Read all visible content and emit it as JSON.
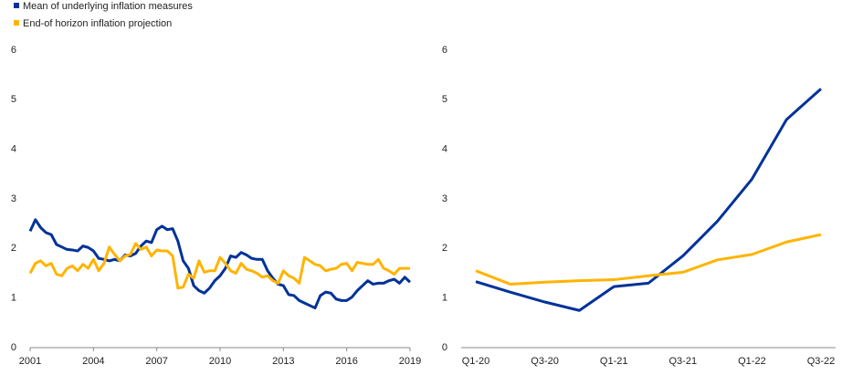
{
  "chart_data": [
    {
      "type": "line",
      "x": [
        2001,
        2001.25,
        2001.5,
        2001.75,
        2002,
        2002.25,
        2002.5,
        2002.75,
        2003,
        2003.25,
        2003.5,
        2003.75,
        2004,
        2004.25,
        2004.5,
        2004.75,
        2005,
        2005.25,
        2005.5,
        2005.75,
        2006,
        2006.25,
        2006.5,
        2006.75,
        2007,
        2007.25,
        2007.5,
        2007.75,
        2008,
        2008.25,
        2008.5,
        2008.75,
        2009,
        2009.25,
        2009.5,
        2009.75,
        2010,
        2010.25,
        2010.5,
        2010.75,
        2011,
        2011.25,
        2011.5,
        2011.75,
        2012,
        2012.25,
        2012.5,
        2012.75,
        2013,
        2013.25,
        2013.5,
        2013.75,
        2014,
        2014.25,
        2014.5,
        2014.75,
        2015,
        2015.25,
        2015.5,
        2015.75,
        2016,
        2016.25,
        2016.5,
        2016.75,
        2017,
        2017.25,
        2017.5,
        2017.75,
        2018,
        2018.25,
        2018.5,
        2018.75,
        2019
      ],
      "series": [
        {
          "name": "Mean of underlying inflation measures",
          "color": "#003299",
          "values": [
            2.35,
            2.58,
            2.42,
            2.32,
            2.28,
            2.08,
            2.03,
            1.98,
            1.97,
            1.95,
            2.05,
            2.02,
            1.95,
            1.8,
            1.78,
            1.75,
            1.78,
            1.75,
            1.87,
            1.85,
            1.9,
            2.05,
            2.15,
            2.12,
            2.38,
            2.45,
            2.38,
            2.4,
            2.15,
            1.75,
            1.6,
            1.25,
            1.15,
            1.1,
            1.2,
            1.35,
            1.45,
            1.6,
            1.85,
            1.82,
            1.92,
            1.87,
            1.8,
            1.78,
            1.78,
            1.55,
            1.4,
            1.28,
            1.25,
            1.07,
            1.05,
            0.95,
            0.9,
            0.85,
            0.8,
            1.05,
            1.12,
            1.1,
            0.98,
            0.95,
            0.95,
            1.02,
            1.15,
            1.25,
            1.35,
            1.28,
            1.3,
            1.3,
            1.35,
            1.38,
            1.3,
            1.42,
            1.32
          ]
        },
        {
          "name": "End-of horizon inflation projection",
          "color": "#ffb400",
          "values": [
            1.5,
            1.7,
            1.75,
            1.65,
            1.7,
            1.48,
            1.45,
            1.6,
            1.65,
            1.55,
            1.68,
            1.6,
            1.78,
            1.55,
            1.7,
            2.03,
            1.88,
            1.75,
            1.85,
            1.88,
            2.1,
            1.98,
            2.03,
            1.85,
            1.97,
            1.95,
            1.95,
            1.85,
            1.2,
            1.22,
            1.48,
            1.4,
            1.75,
            1.52,
            1.55,
            1.55,
            1.82,
            1.7,
            1.55,
            1.5,
            1.7,
            1.58,
            1.55,
            1.5,
            1.42,
            1.45,
            1.35,
            1.3,
            1.55,
            1.45,
            1.4,
            1.3,
            1.82,
            1.75,
            1.68,
            1.65,
            1.55,
            1.58,
            1.6,
            1.68,
            1.7,
            1.55,
            1.72,
            1.7,
            1.68,
            1.68,
            1.78,
            1.6,
            1.55,
            1.48,
            1.6,
            1.6,
            1.6
          ]
        }
      ],
      "xlim": [
        2001,
        2019
      ],
      "xticks": [
        2001,
        2004,
        2007,
        2010,
        2013,
        2016,
        2019
      ],
      "ylim": [
        0,
        6
      ],
      "yticks": [
        0,
        1,
        2,
        3,
        4,
        5,
        6
      ]
    },
    {
      "type": "line",
      "categories": [
        "Q1-20",
        null,
        "Q3-20",
        null,
        "Q1-21",
        null,
        "Q3-21",
        null,
        "Q1-22",
        null,
        "Q3-22"
      ],
      "series": [
        {
          "color": "#003299",
          "values": [
            1.33,
            1.12,
            0.92,
            0.75,
            1.23,
            1.3,
            1.85,
            2.55,
            3.4,
            4.6,
            5.22
          ]
        },
        {
          "color": "#ffb400",
          "values": [
            1.55,
            1.28,
            1.32,
            1.35,
            1.37,
            1.45,
            1.52,
            1.77,
            1.88,
            2.13,
            2.28
          ]
        }
      ],
      "ylim": [
        0,
        6
      ],
      "yticks": [
        0,
        1,
        2,
        3,
        4,
        5,
        6
      ]
    }
  ]
}
